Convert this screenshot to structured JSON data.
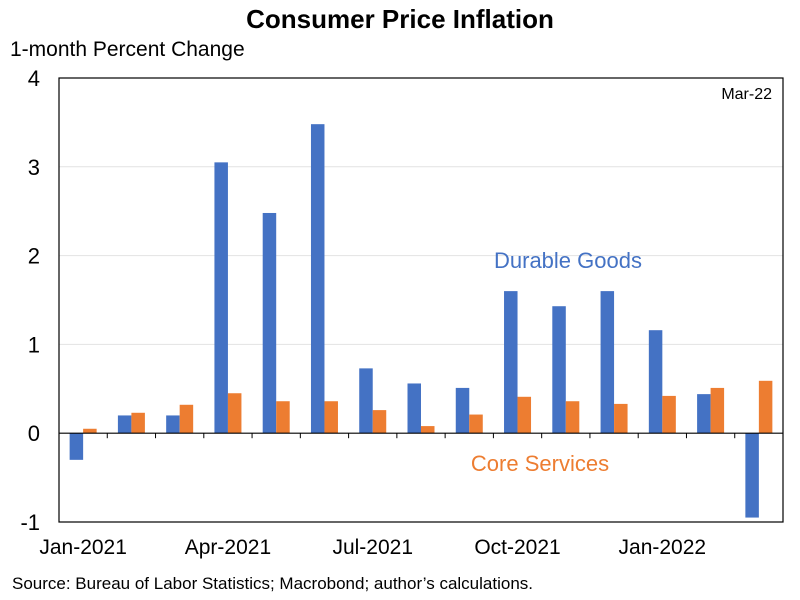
{
  "chart_data": {
    "type": "bar",
    "title": "Consumer Price Inflation",
    "ylabel": "1-month Percent Change",
    "ylim": [
      -1,
      4
    ],
    "yticks": [
      4,
      3,
      2,
      1,
      0,
      -1
    ],
    "months": [
      "Jan-2021",
      "Feb-2021",
      "Mar-2021",
      "Apr-2021",
      "May-2021",
      "Jun-2021",
      "Jul-2021",
      "Aug-2021",
      "Sep-2021",
      "Oct-2021",
      "Nov-2021",
      "Dec-2021",
      "Jan-2022",
      "Feb-2022",
      "Mar-2022"
    ],
    "xtick_labels": [
      {
        "label": "Jan-2021",
        "index": 0
      },
      {
        "label": "Apr-2021",
        "index": 3
      },
      {
        "label": "Jul-2021",
        "index": 6
      },
      {
        "label": "Oct-2021",
        "index": 9
      },
      {
        "label": "Jan-2022",
        "index": 12
      }
    ],
    "series": [
      {
        "name": "Durable Goods",
        "color": "#4472C4",
        "values": [
          -0.3,
          0.2,
          0.2,
          3.05,
          2.48,
          3.48,
          0.73,
          0.56,
          0.51,
          1.6,
          1.43,
          1.6,
          1.16,
          0.44,
          -0.95
        ]
      },
      {
        "name": "Core Services",
        "color": "#ED7D31",
        "values": [
          0.05,
          0.23,
          0.32,
          0.45,
          0.36,
          0.36,
          0.26,
          0.08,
          0.21,
          0.41,
          0.36,
          0.33,
          0.42,
          0.51,
          0.59
        ]
      }
    ],
    "corner_note": "Mar-22",
    "grid": true
  },
  "source": "Source: Bureau of Labor Statistics; Macrobond; author’s calculations."
}
